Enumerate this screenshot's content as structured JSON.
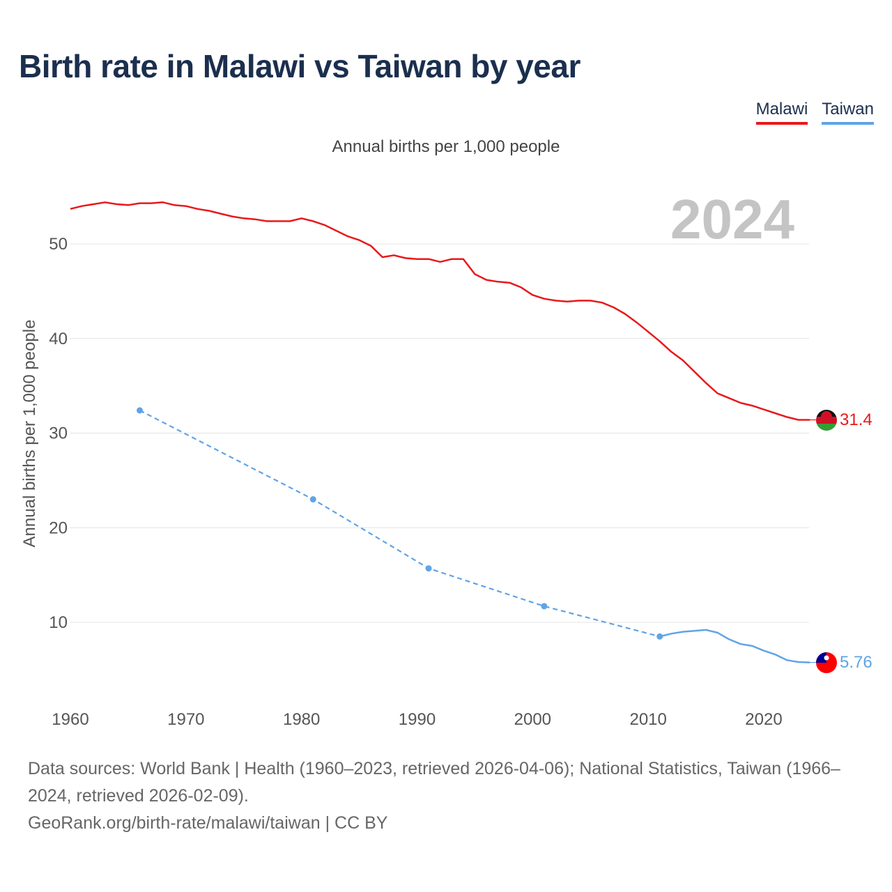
{
  "title": "Birth rate in Malawi vs Taiwan by year",
  "legend": {
    "malawi": "Malawi",
    "taiwan": "Taiwan"
  },
  "subtitle": "Annual births per 1,000 people",
  "footer": {
    "sources": "Data sources: World Bank | Health (1960–2023, retrieved 2026-04-06); National Statistics, Taiwan (1966–2024, retrieved 2026-02-09).",
    "attribution": "GeoRank.org/birth-rate/malawi/taiwan | CC BY"
  },
  "colors": {
    "malawi": "#e8191b",
    "taiwan": "#5fa4e6",
    "year_watermark": "#c4c4c4"
  },
  "chart_data": {
    "type": "line",
    "title": "Birth rate in Malawi vs Taiwan by year",
    "ylabel": "Annual births per 1,000 people",
    "xlabel": "",
    "xlim": [
      1960,
      2025
    ],
    "ylim": [
      0,
      55
    ],
    "yticks": [
      10,
      20,
      30,
      40,
      50
    ],
    "xticks": [
      1960,
      1970,
      1980,
      1990,
      2000,
      2010,
      2020
    ],
    "grid": true,
    "year_label": "2024",
    "series": [
      {
        "name": "Malawi",
        "color": "#e8191b",
        "end_label": "31.4",
        "end_value": 31.4,
        "x": [
          1960,
          1961,
          1962,
          1963,
          1964,
          1965,
          1966,
          1967,
          1968,
          1969,
          1970,
          1971,
          1972,
          1973,
          1974,
          1975,
          1976,
          1977,
          1978,
          1979,
          1980,
          1981,
          1982,
          1983,
          1984,
          1985,
          1986,
          1987,
          1988,
          1989,
          1990,
          1991,
          1992,
          1993,
          1994,
          1995,
          1996,
          1997,
          1998,
          1999,
          2000,
          2001,
          2002,
          2003,
          2004,
          2005,
          2006,
          2007,
          2008,
          2009,
          2010,
          2011,
          2012,
          2013,
          2014,
          2015,
          2016,
          2017,
          2018,
          2019,
          2020,
          2021,
          2022,
          2023,
          2024
        ],
        "values": [
          53.7,
          54.0,
          54.2,
          54.4,
          54.2,
          54.1,
          54.3,
          54.3,
          54.4,
          54.1,
          54.0,
          53.7,
          53.5,
          53.2,
          52.9,
          52.7,
          52.6,
          52.4,
          52.4,
          52.4,
          52.7,
          52.4,
          52.0,
          51.4,
          50.8,
          50.4,
          49.8,
          48.6,
          48.8,
          48.5,
          48.4,
          48.4,
          48.1,
          48.4,
          48.4,
          46.8,
          46.2,
          46.0,
          45.9,
          45.4,
          44.6,
          44.2,
          44.0,
          43.9,
          44.0,
          44.0,
          43.8,
          43.3,
          42.6,
          41.7,
          40.7,
          39.7,
          38.6,
          37.7,
          36.5,
          35.3,
          34.2,
          33.7,
          33.2,
          32.9,
          32.5,
          32.1,
          31.7,
          31.4,
          31.4
        ]
      },
      {
        "name": "Taiwan",
        "color": "#5fa4e6",
        "end_label": "5.76",
        "end_value": 5.76,
        "census_points": {
          "x": [
            1966,
            1981,
            1991,
            2001,
            2011
          ],
          "values": [
            32.4,
            23.0,
            15.7,
            11.7,
            8.5
          ]
        },
        "x": [
          2011,
          2012,
          2013,
          2014,
          2015,
          2016,
          2017,
          2018,
          2019,
          2020,
          2021,
          2022,
          2023,
          2024
        ],
        "values": [
          8.5,
          8.8,
          9.0,
          9.1,
          9.2,
          8.9,
          8.2,
          7.7,
          7.5,
          7.0,
          6.6,
          6.0,
          5.8,
          5.76
        ]
      }
    ]
  }
}
